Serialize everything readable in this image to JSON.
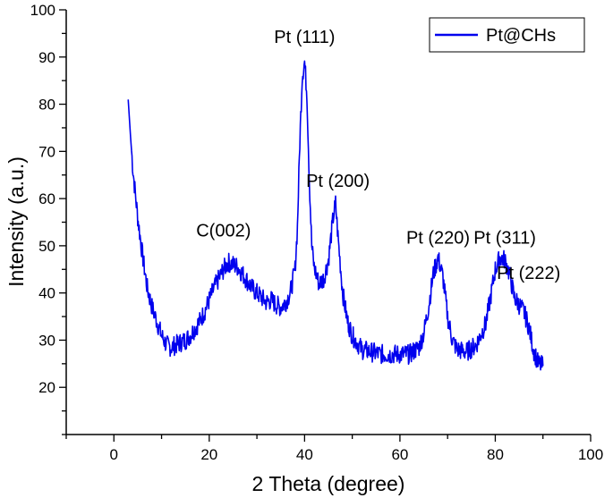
{
  "chart_data": {
    "type": "line",
    "title": "",
    "xlabel": "2 Theta (degree)",
    "ylabel": "Intensity (a.u.)",
    "xlim": [
      -10,
      100
    ],
    "ylim": [
      10,
      100
    ],
    "xticks": [
      0,
      20,
      40,
      60,
      80,
      100
    ],
    "yticks": [
      20,
      30,
      40,
      50,
      60,
      70,
      80,
      90,
      100
    ],
    "grid": false,
    "legend_position": "top-right",
    "series": [
      {
        "name": "Pt@CHs",
        "color": "#0000ee",
        "x": [
          3,
          3.5,
          4,
          5,
          6,
          7,
          8,
          9,
          10,
          11,
          12,
          13,
          14,
          15,
          16,
          17,
          18,
          19,
          20,
          21,
          22,
          23,
          24,
          25,
          26,
          27,
          28,
          29,
          30,
          31,
          32,
          33,
          34,
          35,
          36,
          37,
          38,
          38.5,
          39,
          39.5,
          40,
          40.5,
          41,
          41.5,
          42,
          43,
          44,
          45,
          46,
          46.5,
          47,
          48,
          49,
          50,
          51,
          52,
          54,
          56,
          58,
          60,
          62,
          64,
          65,
          66,
          67,
          68,
          69,
          70,
          71,
          72,
          74,
          76,
          78,
          79,
          80,
          81,
          82,
          83,
          84,
          85,
          86,
          87,
          88,
          89,
          90
        ],
        "values": [
          81,
          73,
          66,
          56,
          48,
          41,
          37,
          34,
          31,
          29,
          28.5,
          29,
          29.5,
          30,
          31,
          32.5,
          34,
          36,
          38.5,
          41,
          43,
          45,
          46.5,
          46,
          45.5,
          44,
          42.5,
          41,
          40,
          39,
          38,
          38.5,
          37.5,
          37,
          38,
          40,
          45,
          54,
          72,
          86,
          89,
          82,
          64,
          50,
          45.5,
          42,
          43,
          47,
          56,
          59,
          52,
          40,
          34,
          31,
          29.5,
          28,
          27.5,
          27,
          27,
          27,
          27,
          28.5,
          31.5,
          37,
          44,
          47.5,
          43.5,
          35,
          30,
          28,
          27.5,
          29,
          33.5,
          39,
          45,
          47.5,
          47,
          44,
          39,
          37.5,
          36,
          33,
          28,
          25,
          24.5
        ]
      }
    ],
    "annotations": [
      {
        "text": "C(002)",
        "x": 23,
        "y": 52
      },
      {
        "text": "Pt (111)",
        "x": 40,
        "y": 93
      },
      {
        "text": "Pt (200)",
        "x": 47,
        "y": 62.5
      },
      {
        "text": "Pt (220)",
        "x": 68,
        "y": 50.5
      },
      {
        "text": "Pt (311)",
        "x": 82,
        "y": 50.5
      },
      {
        "text": "Pt (222)",
        "x": 87,
        "y": 43
      }
    ]
  }
}
